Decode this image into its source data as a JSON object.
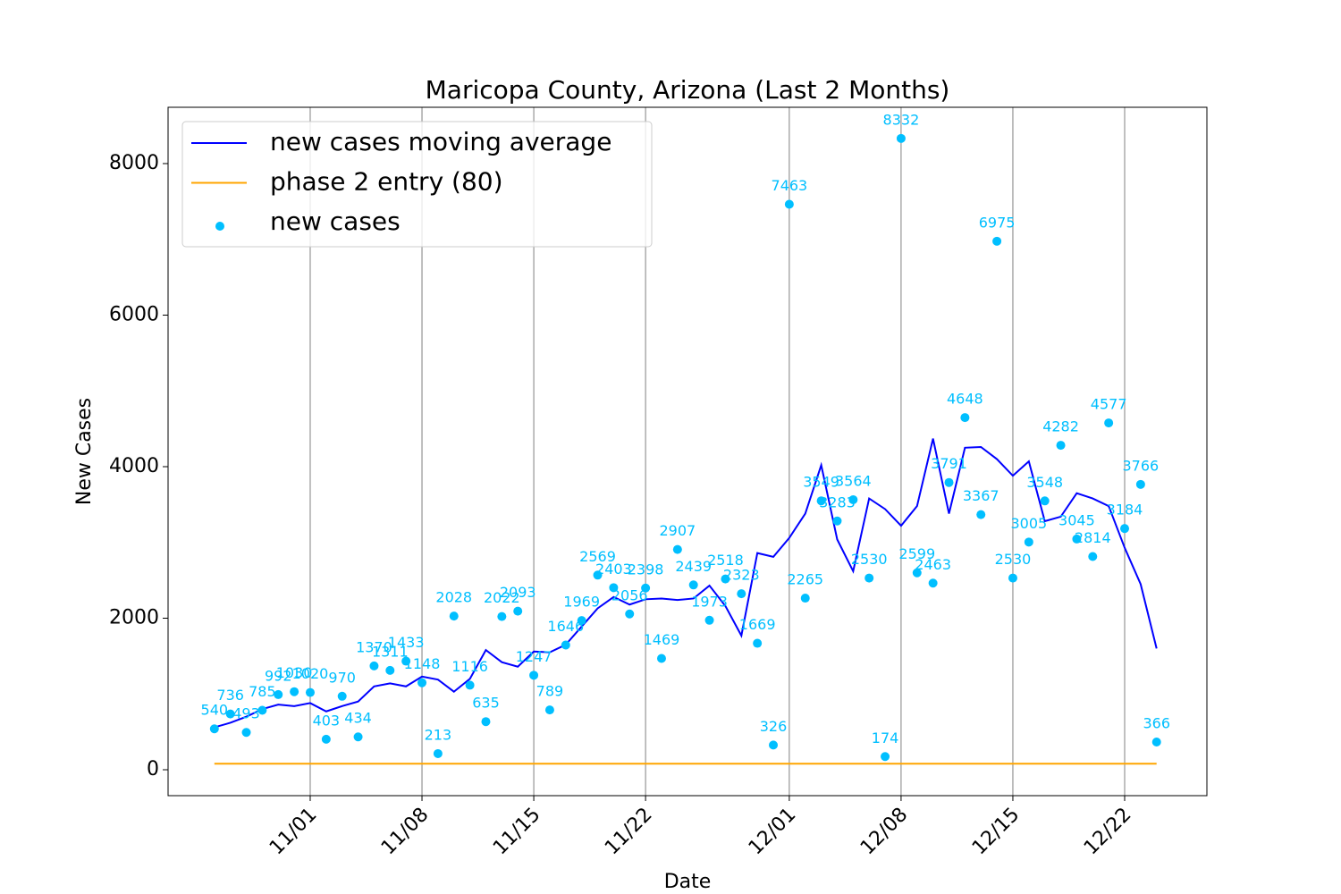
{
  "chart_data": {
    "type": "line",
    "title": "Maricopa County, Arizona (Last 2 Months)",
    "xlabel": "Date",
    "ylabel": "New Cases",
    "x": [
      "10/26",
      "10/27",
      "10/28",
      "10/29",
      "10/30",
      "10/31",
      "11/01",
      "11/02",
      "11/03",
      "11/04",
      "11/05",
      "11/06",
      "11/07",
      "11/08",
      "11/09",
      "11/10",
      "11/11",
      "11/12",
      "11/13",
      "11/14",
      "11/15",
      "11/16",
      "11/17",
      "11/18",
      "11/19",
      "11/20",
      "11/21",
      "11/22",
      "11/23",
      "11/24",
      "11/25",
      "11/26",
      "11/27",
      "11/28",
      "11/29",
      "11/30",
      "12/01",
      "12/02",
      "12/03",
      "12/04",
      "12/05",
      "12/06",
      "12/07",
      "12/08",
      "12/09",
      "12/10",
      "12/11",
      "12/12",
      "12/13",
      "12/14",
      "12/15",
      "12/16",
      "12/17",
      "12/18",
      "12/19",
      "12/20",
      "12/21",
      "12/22",
      "12/23",
      "12/24"
    ],
    "xticks": [
      "11/01",
      "11/08",
      "11/15",
      "11/22",
      "12/01",
      "12/08",
      "12/15",
      "12/22"
    ],
    "ylim": [
      -342,
      8743
    ],
    "yticks": [
      0,
      2000,
      4000,
      6000,
      8000
    ],
    "grid": "x",
    "legend": "upper left",
    "series": [
      {
        "name": "new cases moving average",
        "type": "line",
        "color": "#0000ff",
        "values": [
          560,
          620,
          700,
          800,
          860,
          840,
          880,
          770,
          840,
          900,
          1100,
          1140,
          1100,
          1230,
          1190,
          1030,
          1200,
          1580,
          1420,
          1360,
          1560,
          1550,
          1650,
          1890,
          2130,
          2280,
          2180,
          2250,
          2260,
          2240,
          2260,
          2430,
          2160,
          1770,
          2860,
          2810,
          3060,
          3380,
          4020,
          3040,
          2620,
          3580,
          3440,
          3220,
          3480,
          4370,
          3380,
          4250,
          4260,
          4100,
          3880,
          4070,
          3280,
          3340,
          3650,
          3580,
          3480,
          2930,
          2450,
          1600
        ]
      },
      {
        "name": "phase 2 entry (80)",
        "type": "line",
        "color": "#ffa500",
        "values": [
          80,
          80,
          80,
          80,
          80,
          80,
          80,
          80,
          80,
          80,
          80,
          80,
          80,
          80,
          80,
          80,
          80,
          80,
          80,
          80,
          80,
          80,
          80,
          80,
          80,
          80,
          80,
          80,
          80,
          80,
          80,
          80,
          80,
          80,
          80,
          80,
          80,
          80,
          80,
          80,
          80,
          80,
          80,
          80,
          80,
          80,
          80,
          80,
          80,
          80,
          80,
          80,
          80,
          80,
          80,
          80,
          80,
          80,
          80,
          80
        ]
      },
      {
        "name": "new cases",
        "type": "scatter",
        "color": "#00bfff",
        "values": [
          540,
          736,
          493,
          785,
          992,
          1030,
          1020,
          403,
          970,
          434,
          1370,
          1311,
          1433,
          1148,
          213,
          2028,
          1116,
          635,
          2022,
          2093,
          1247,
          789,
          1646,
          1969,
          2569,
          2403,
          2056,
          2398,
          1469,
          2907,
          2439,
          1973,
          2518,
          2323,
          1669,
          326,
          7463,
          2265,
          3549,
          3283,
          3564,
          2530,
          174,
          8332,
          2599,
          2463,
          3791,
          4648,
          3367,
          6975,
          2530,
          3005,
          3548,
          4282,
          3045,
          2814,
          4577,
          3184,
          3766,
          366
        ]
      }
    ]
  }
}
